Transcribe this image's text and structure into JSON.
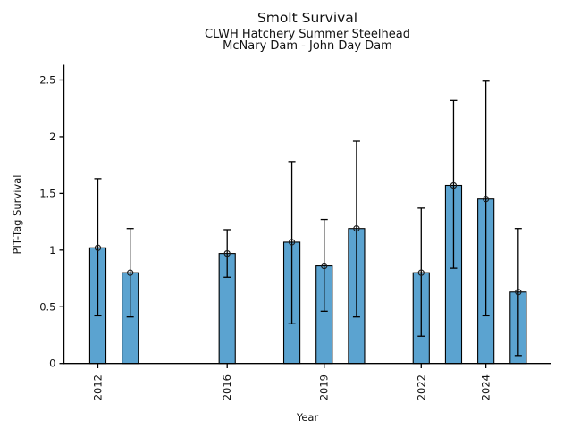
{
  "figure": {
    "background": "#ffffff"
  },
  "chart_data": {
    "type": "bar",
    "title": "Smolt Survival",
    "subtitle1": "CLWH Hatchery Summer Steelhead",
    "subtitle2": "McNary Dam - John Day Dam",
    "xlabel": "Year",
    "ylabel": "PIT-Tag Survival",
    "bar_color": "#5BA3D0",
    "bar_edge_color": "#000000",
    "error_color": "#000000",
    "marker": "open-circle",
    "grid": false,
    "legend": null,
    "xlim": [
      2010.95,
      2026.0
    ],
    "ylim": [
      0,
      2.63
    ],
    "bar_width_years": 0.5,
    "xticks": [
      {
        "value": 2012,
        "label": "2012"
      },
      {
        "value": 2016,
        "label": "2016"
      },
      {
        "value": 2019,
        "label": "2019"
      },
      {
        "value": 2022,
        "label": "2022"
      },
      {
        "value": 2024,
        "label": "2024"
      }
    ],
    "yticks": [
      {
        "value": 0,
        "label": "0"
      },
      {
        "value": 0.5,
        "label": "0.5"
      },
      {
        "value": 1,
        "label": "1"
      },
      {
        "value": 1.5,
        "label": "1.5"
      },
      {
        "value": 2,
        "label": "2"
      },
      {
        "value": 2.5,
        "label": "2.5"
      }
    ],
    "series": [
      {
        "year": 2012,
        "value": 1.02,
        "err_low": 0.42,
        "err_high": 1.63
      },
      {
        "year": 2013,
        "value": 0.8,
        "err_low": 0.41,
        "err_high": 1.19
      },
      {
        "year": 2016,
        "value": 0.97,
        "err_low": 0.76,
        "err_high": 1.18
      },
      {
        "year": 2018,
        "value": 1.07,
        "err_low": 0.35,
        "err_high": 1.78
      },
      {
        "year": 2019,
        "value": 0.86,
        "err_low": 0.46,
        "err_high": 1.27
      },
      {
        "year": 2020,
        "value": 1.19,
        "err_low": 0.41,
        "err_high": 1.96
      },
      {
        "year": 2022,
        "value": 0.8,
        "err_low": 0.24,
        "err_high": 1.37
      },
      {
        "year": 2023,
        "value": 1.57,
        "err_low": 0.84,
        "err_high": 2.32
      },
      {
        "year": 2024,
        "value": 1.45,
        "err_low": 0.42,
        "err_high": 2.49
      },
      {
        "year": 2025,
        "value": 0.63,
        "err_low": 0.07,
        "err_high": 1.19
      }
    ]
  }
}
